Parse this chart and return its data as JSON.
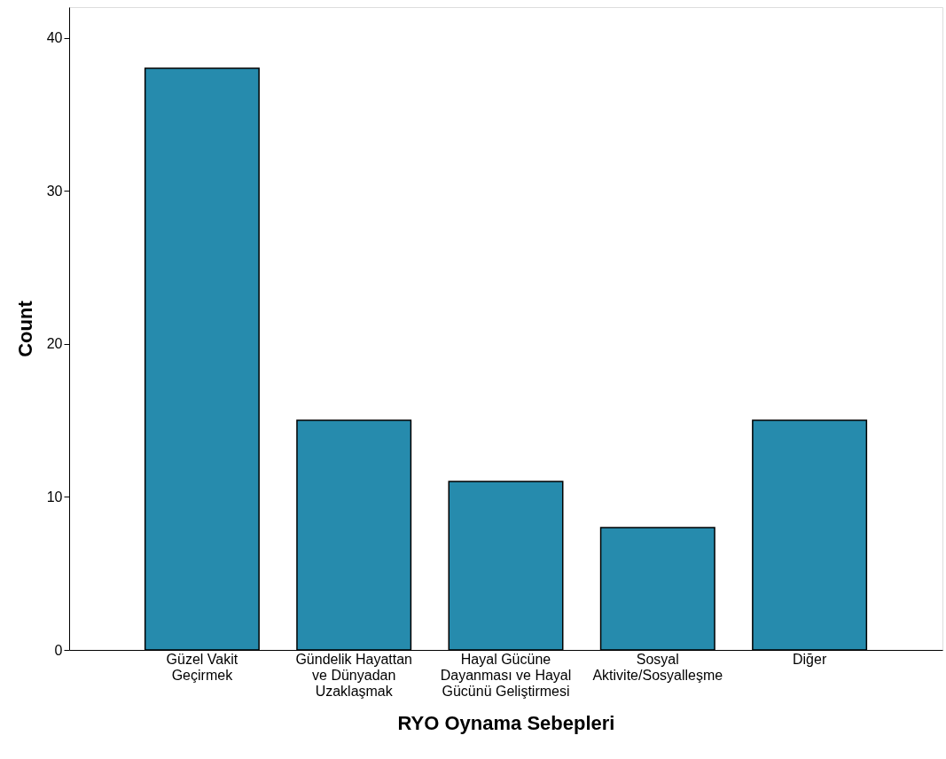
{
  "chart_data": {
    "type": "bar",
    "xlabel": "RYO Oynama Sebepleri",
    "ylabel": "Count",
    "categories": [
      "Güzel Vakit\nGeçirmek",
      "Gündelik Hayattan\nve Dünyadan\nUzaklaşmak",
      "Hayal Gücüne\nDayanması ve Hayal\nGücünü Geliştirmesi",
      "Sosyal\nAktivite/Sosyalleşme",
      "Diğer"
    ],
    "values": [
      38,
      15,
      11,
      8,
      15
    ],
    "color": "#268bad",
    "ylim": [
      0,
      42
    ],
    "yticks": [
      0,
      10,
      20,
      30,
      40
    ],
    "grid": false
  }
}
